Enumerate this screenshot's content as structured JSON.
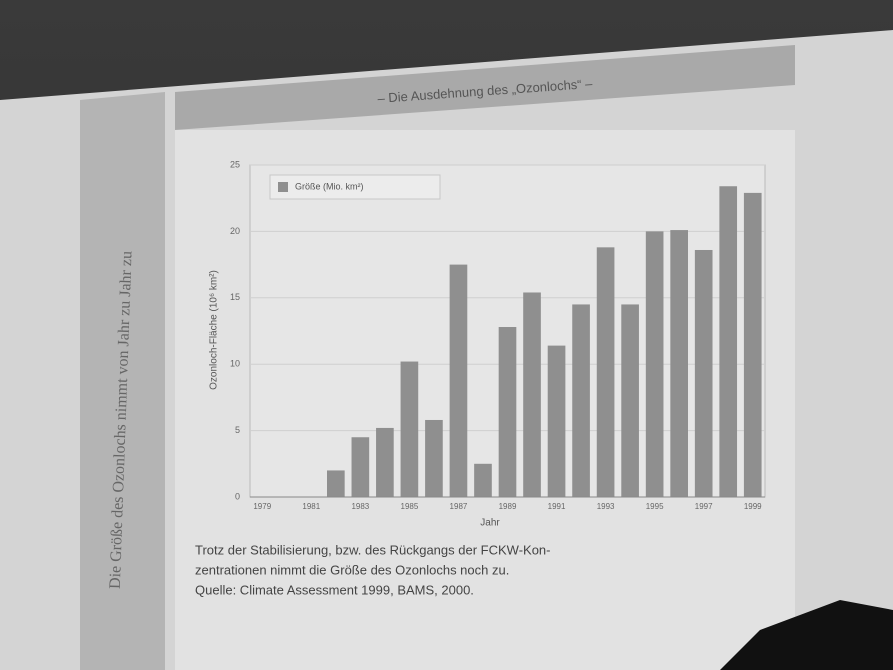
{
  "slide": {
    "title": "– Die Ausdehnung des „Ozonlochs“ –",
    "side_text": "Die Größe des Ozonlochs nimmt von Jahr zu Jahr zu",
    "caption": [
      "Trotz der Stabilisierung, bzw. des Rückgangs der FCKW-Kon-",
      "zentrationen nimmt die Größe des Ozonlochs noch zu.",
      "Quelle: Climate Assessment 1999, BAMS, 2000."
    ]
  },
  "chart_data": {
    "type": "bar",
    "ylabel": "Ozonloch-Fläche (10⁶ km²)",
    "xlabel": "Jahr",
    "categories": [
      "1979",
      null,
      "1981",
      null,
      "1983",
      null,
      "1985",
      null,
      "1987",
      null,
      "1989",
      null,
      "1991",
      null,
      "1993",
      null,
      "1995",
      null,
      "1997",
      null,
      "1999"
    ],
    "series": [
      {
        "name": "Größe (Mio. km²)",
        "color": "#8f8f8f",
        "values": [
          0,
          0,
          0,
          2.0,
          4.5,
          5.2,
          10.2,
          5.8,
          17.5,
          2.5,
          12.8,
          15.4,
          11.4,
          14.5,
          18.8,
          14.5,
          20.0,
          20.1,
          18.6,
          23.4,
          22.9
        ]
      }
    ],
    "ylim": [
      0,
      25
    ],
    "yticks": [
      0,
      5,
      10,
      15,
      20,
      25
    ],
    "grid": true,
    "legend": "top-left"
  }
}
